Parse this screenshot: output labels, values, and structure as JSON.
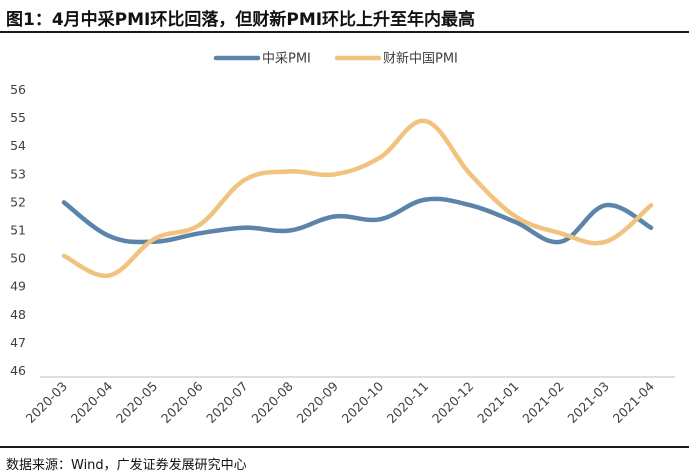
{
  "title": "图1：4月中采PMI环比回落，但财新PMI环比上升至年内最高",
  "source": "数据来源：Wind，广发证券发展研究中心",
  "chart_data": {
    "type": "line",
    "x": [
      "2020-03",
      "2020-04",
      "2020-05",
      "2020-06",
      "2020-07",
      "2020-08",
      "2020-09",
      "2020-10",
      "2020-11",
      "2020-12",
      "2021-01",
      "2021-02",
      "2021-03",
      "2021-04"
    ],
    "series": [
      {
        "name": "中采PMI",
        "color": "#5b84a8",
        "values": [
          52.0,
          50.8,
          50.6,
          50.9,
          51.1,
          51.0,
          51.5,
          51.4,
          52.1,
          51.9,
          51.3,
          50.6,
          51.9,
          51.1
        ]
      },
      {
        "name": "财新中国PMI",
        "color": "#f2c27f",
        "values": [
          50.1,
          49.4,
          50.7,
          51.2,
          52.8,
          53.1,
          53.0,
          53.6,
          54.9,
          53.0,
          51.5,
          50.9,
          50.6,
          51.9
        ]
      }
    ],
    "ylim": [
      46,
      56
    ],
    "yticks": [
      46,
      47,
      48,
      49,
      50,
      51,
      52,
      53,
      54,
      55,
      56
    ],
    "legend": "top-center",
    "grid": false
  }
}
